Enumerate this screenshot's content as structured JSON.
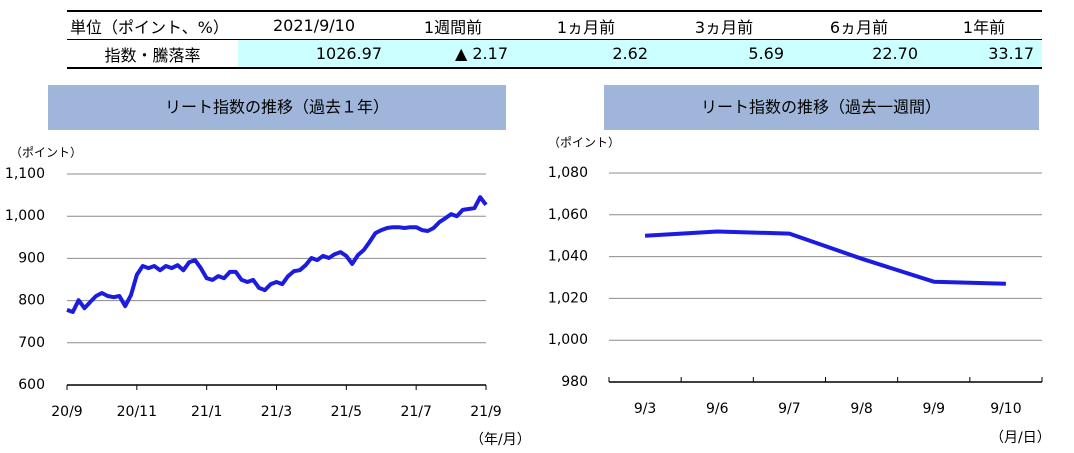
{
  "table": {
    "header": [
      "単位（ポイント、%）",
      "2021/9/10",
      "1週間前",
      "1ヵ月前",
      "3ヵ月前",
      "6ヵ月前",
      "1年前"
    ],
    "rows": [
      [
        "指数・騰落率",
        "1026.97",
        "▲ 2.17",
        "2.62",
        "5.69",
        "22.70",
        "33.17"
      ]
    ]
  },
  "chart_data": [
    {
      "type": "line",
      "title": "リート指数の推移（過去１年）",
      "y_label": "（ポイント）",
      "x_label": "（年/月）",
      "categories": [
        "20/9",
        null,
        null,
        null,
        null,
        null,
        null,
        null,
        null,
        null,
        null,
        null,
        "20/11",
        null,
        null,
        null,
        null,
        null,
        null,
        null,
        null,
        null,
        null,
        null,
        "21/1",
        null,
        null,
        null,
        null,
        null,
        null,
        null,
        null,
        null,
        null,
        null,
        "21/3",
        null,
        null,
        null,
        null,
        null,
        null,
        null,
        null,
        null,
        null,
        null,
        "21/5",
        null,
        null,
        null,
        null,
        null,
        null,
        null,
        null,
        null,
        null,
        null,
        "21/7",
        null,
        null,
        null,
        null,
        null,
        null,
        null,
        null,
        null,
        null,
        null,
        "21/9"
      ],
      "values": [
        778,
        773,
        801,
        782,
        797,
        811,
        818,
        811,
        808,
        811,
        787,
        813,
        861,
        882,
        877,
        882,
        872,
        882,
        877,
        884,
        872,
        891,
        896,
        877,
        853,
        849,
        858,
        853,
        868,
        868,
        849,
        844,
        849,
        830,
        825,
        839,
        844,
        839,
        858,
        870,
        872,
        884,
        901,
        896,
        906,
        901,
        910,
        915,
        906,
        887,
        908,
        920,
        939,
        960,
        967,
        972,
        974,
        974,
        972,
        974,
        974,
        967,
        965,
        972,
        986,
        995,
        1005,
        1000,
        1015,
        1017,
        1019,
        1045,
        1027
      ],
      "color": "#1c1ce0",
      "ylim": [
        600,
        1100
      ],
      "yticks": [
        600,
        700,
        800,
        900,
        {
          "value": 1000,
          "label": "1,000"
        },
        {
          "value": 1100,
          "label": "1,100"
        }
      ],
      "grid": true
    },
    {
      "type": "line",
      "title": "リート指数の推移（過去一週間）",
      "y_label": "（ポイント）",
      "x_label": "（月/日）",
      "categories": [
        "9/3",
        "9/6",
        "9/7",
        "9/8",
        "9/9",
        "9/10"
      ],
      "values": [
        1050,
        1052,
        1051,
        1039,
        1028,
        1027
      ],
      "color": "#1c1ce0",
      "ylim": [
        980,
        1080
      ],
      "yticks": [
        980,
        {
          "value": 1000,
          "label": "1,000"
        },
        {
          "value": 1020,
          "label": "1,020"
        },
        {
          "value": 1040,
          "label": "1,040"
        },
        {
          "value": 1060,
          "label": "1,060"
        },
        {
          "value": 1080,
          "label": "1,080"
        }
      ],
      "grid": true
    }
  ]
}
